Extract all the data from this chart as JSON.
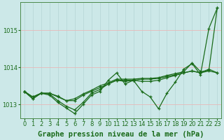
{
  "xlabel": "Graphe pression niveau de la mer (hPa)",
  "hours": [
    0,
    1,
    2,
    3,
    4,
    5,
    6,
    7,
    8,
    9,
    10,
    11,
    12,
    13,
    14,
    15,
    16,
    17,
    18,
    19,
    20,
    21,
    22,
    23
  ],
  "line1": [
    1013.35,
    1013.15,
    1013.3,
    1013.25,
    1013.05,
    1012.9,
    1012.75,
    1013.0,
    1013.25,
    1013.35,
    1013.65,
    1013.85,
    1013.55,
    1013.65,
    1013.35,
    1013.2,
    1012.88,
    1013.3,
    1013.6,
    1013.95,
    1014.1,
    1013.8,
    1015.05,
    1015.6
  ],
  "line2": [
    1013.35,
    1013.15,
    1013.3,
    1013.28,
    1013.1,
    1012.95,
    1012.85,
    1013.05,
    1013.3,
    1013.4,
    1013.55,
    1013.65,
    1013.62,
    1013.65,
    1013.62,
    1013.62,
    1013.65,
    1013.72,
    1013.78,
    1013.85,
    1013.9,
    1013.85,
    1013.95,
    1013.85
  ],
  "line3": [
    1013.35,
    1013.2,
    1013.3,
    1013.3,
    1013.2,
    1013.1,
    1013.1,
    1013.25,
    1013.35,
    1013.45,
    1013.55,
    1013.65,
    1013.65,
    1013.65,
    1013.68,
    1013.68,
    1013.7,
    1013.75,
    1013.8,
    1013.85,
    1013.9,
    1013.85,
    1013.9,
    1013.85
  ],
  "line4": [
    1013.35,
    1013.2,
    1013.3,
    1013.3,
    1013.22,
    1013.1,
    1013.15,
    1013.28,
    1013.38,
    1013.5,
    1013.58,
    1013.68,
    1013.68,
    1013.68,
    1013.7,
    1013.7,
    1013.72,
    1013.78,
    1013.83,
    1013.88,
    1014.12,
    1013.88,
    1013.92,
    1015.6
  ],
  "line_color": "#1a6b1a",
  "marker": "+",
  "markersize": 3.5,
  "linewidth": 0.9,
  "bg_color": "#cce8e8",
  "plot_bg": "#cce8e8",
  "grid_color_h": "#e8b8b8",
  "grid_color_v": "#b8d8d8",
  "ylim": [
    1012.62,
    1015.75
  ],
  "yticks": [
    1013,
    1014,
    1015
  ],
  "xticks": [
    0,
    1,
    2,
    3,
    4,
    5,
    6,
    7,
    8,
    9,
    10,
    11,
    12,
    13,
    14,
    15,
    16,
    17,
    18,
    19,
    20,
    21,
    22,
    23
  ],
  "xlabel_fontsize": 7.5,
  "tick_fontsize": 6.0,
  "tick_color": "#1a6b1a",
  "label_color": "#1a6b1a",
  "spine_color": "#4a8a4a"
}
